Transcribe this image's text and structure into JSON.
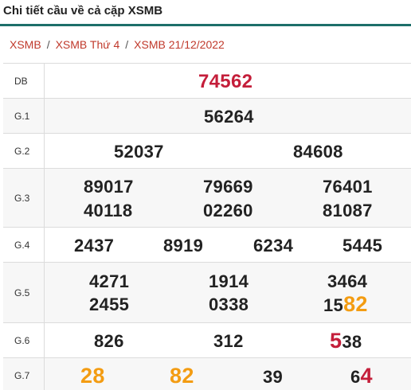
{
  "header": {
    "title": "Chi tiết cầu về cả cặp XSMB"
  },
  "breadcrumb": {
    "items": [
      "XSMB",
      "XSMB Thứ 4",
      "XSMB 21/12/2022"
    ],
    "separator": "/"
  },
  "results": {
    "db": {
      "label": "DB",
      "numbers": [
        "74562"
      ]
    },
    "g1": {
      "label": "G.1",
      "numbers": [
        "56264"
      ]
    },
    "g2": {
      "label": "G.2",
      "numbers": [
        "52037",
        "84608"
      ]
    },
    "g3": {
      "label": "G.3",
      "numbers": [
        "89017",
        "79669",
        "76401",
        "40118",
        "02260",
        "81087"
      ]
    },
    "g4": {
      "label": "G.4",
      "numbers": [
        "2437",
        "8919",
        "6234",
        "5445"
      ]
    },
    "g5": {
      "label": "G.5",
      "numbers": [
        "4271",
        "1914",
        "3464",
        "2455",
        "0338"
      ],
      "highlight_number": {
        "prefix": "15",
        "highlight": "82"
      }
    },
    "g6": {
      "label": "G.6",
      "numbers": [
        "826",
        "312"
      ],
      "highlight_number": {
        "highlight": "5",
        "suffix": "38"
      }
    },
    "g7": {
      "label": "G.7",
      "numbers": [
        "28",
        "82",
        "39"
      ],
      "highlight_number": {
        "prefix": "6",
        "highlight": "4"
      }
    }
  },
  "colors": {
    "accent_rule": "#1d6f6a",
    "special_prize": "#c41e3a",
    "highlight_orange": "#f39c12",
    "highlight_red": "#c41e3a",
    "breadcrumb_link": "#c0392b"
  }
}
